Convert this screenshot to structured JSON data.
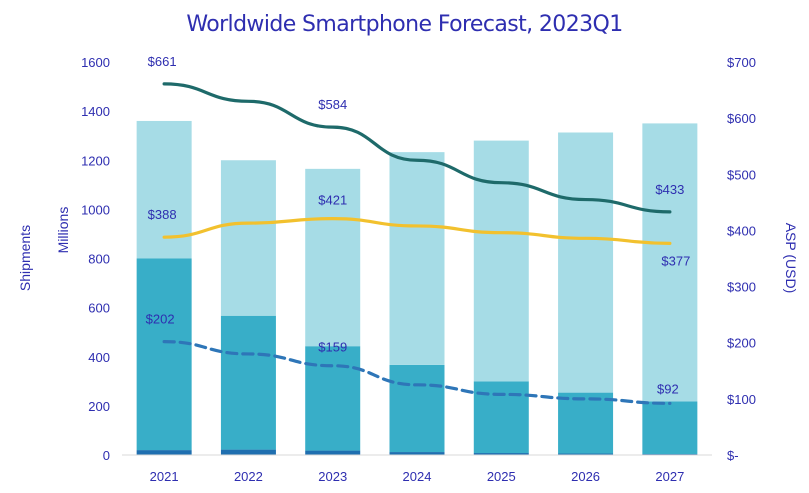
{
  "chart_data": {
    "type": "bar",
    "title": "Worldwide Smartphone Forecast, 2023Q1",
    "categories": [
      "2021",
      "2022",
      "2023",
      "2024",
      "2025",
      "2026",
      "2027"
    ],
    "y_left": {
      "labels": [
        "Shipments",
        "Millions"
      ],
      "ylim": [
        0,
        1600
      ],
      "ticks": [
        "0",
        "200",
        "400",
        "600",
        "800",
        "1000",
        "1200",
        "1400",
        "1600"
      ]
    },
    "y_right": {
      "label": "ASP (USD)",
      "ylim": [
        0,
        700
      ],
      "ticks": [
        "$-",
        "$100",
        "$200",
        "$300",
        "$400",
        "$500",
        "$600",
        "$700"
      ]
    },
    "stacked_series": [
      {
        "color": "#1f6fb0",
        "values": [
          20,
          22,
          18,
          12,
          8,
          6,
          4
        ]
      },
      {
        "color": "#38aec8",
        "values": [
          780,
          545,
          425,
          355,
          292,
          248,
          214
        ]
      },
      {
        "color": "#a6dce6",
        "values": [
          560,
          633,
          722,
          866,
          980,
          1059,
          1132
        ]
      }
    ],
    "line_series": [
      {
        "color": "#1e6a6a",
        "style": "solid",
        "axis": "right",
        "values": [
          661,
          630,
          584,
          525,
          485,
          455,
          433
        ],
        "labels": [
          "$661",
          "",
          "$584",
          "",
          "",
          "",
          "$433"
        ]
      },
      {
        "color": "#f2c12e",
        "style": "solid",
        "axis": "right",
        "values": [
          388,
          413,
          421,
          408,
          396,
          386,
          377
        ],
        "labels": [
          "$388",
          "",
          "$421",
          "",
          "",
          "",
          "$377"
        ]
      },
      {
        "color": "#2e76b8",
        "style": "dashed",
        "axis": "right",
        "values": [
          202,
          180,
          159,
          125,
          108,
          100,
          92
        ],
        "labels": [
          "$202",
          "",
          "$159",
          "",
          "",
          "",
          "$92"
        ]
      }
    ],
    "grid": false,
    "legend": "none"
  }
}
